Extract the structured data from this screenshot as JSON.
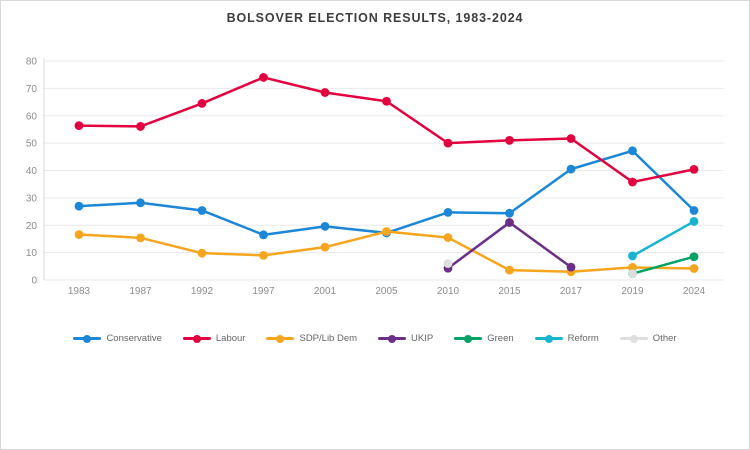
{
  "title": "BOLSOVER ELECTION RESULTS, 1983-2024",
  "chart_data": {
    "type": "line",
    "title": "BOLSOVER ELECTION RESULTS, 1983-2024",
    "categories": [
      "1983",
      "1987",
      "1992",
      "1997",
      "2001",
      "2005",
      "2010",
      "2015",
      "2017",
      "2019",
      "2024"
    ],
    "series": [
      {
        "name": "Conservative",
        "color": "#1b87d6",
        "values": [
          27,
          28.2,
          25.4,
          16.5,
          19.6,
          17.2,
          24.7,
          24.4,
          40.5,
          47.2,
          25.4
        ]
      },
      {
        "name": "Labour",
        "color": "#e2003e",
        "values": [
          56.4,
          56.1,
          64.5,
          74,
          68.5,
          65.3,
          50,
          51,
          51.7,
          35.8,
          40.4
        ]
      },
      {
        "name": "SDP/Lib Dem",
        "color": "#f6a51f",
        "values": [
          16.6,
          15.4,
          9.8,
          9,
          12,
          17.7,
          15.5,
          3.6,
          3,
          4.6,
          4.2
        ]
      },
      {
        "name": "UKIP",
        "color": "#6b2f87",
        "values": [
          null,
          null,
          null,
          null,
          null,
          null,
          4.3,
          21,
          4.7,
          null,
          null
        ]
      },
      {
        "name": "Green",
        "color": "#00a266",
        "values": [
          null,
          null,
          null,
          null,
          null,
          null,
          null,
          null,
          null,
          2.3,
          8.5
        ]
      },
      {
        "name": "Reform",
        "color": "#17b4cf",
        "values": [
          null,
          null,
          null,
          null,
          null,
          null,
          null,
          null,
          null,
          8.8,
          21.4
        ]
      },
      {
        "name": "Other",
        "color": "#dedede",
        "values": [
          null,
          null,
          null,
          null,
          null,
          null,
          6,
          null,
          null,
          2.3,
          null
        ]
      }
    ],
    "ylim": [
      0,
      80
    ],
    "yticks": [
      0,
      10,
      20,
      30,
      40,
      50,
      60,
      70,
      80
    ],
    "grid": true,
    "legend_position": "bottom",
    "xlabel": "",
    "ylabel": ""
  },
  "style": {
    "grid_color": "#eaeaea",
    "axis_color": "#d9d9d9",
    "tick_label_color": "#8c8c8c"
  }
}
